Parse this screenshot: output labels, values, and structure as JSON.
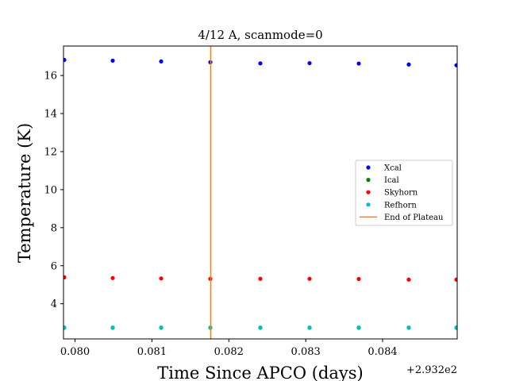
{
  "chart_data": {
    "type": "scatter",
    "title": "4/12 A, scanmode=0",
    "xlabel": "Time Since APCO (days)",
    "ylabel": "Temperature (K)",
    "x_offset_label": "+2.932e2",
    "xlim": [
      0.07985,
      0.08497
    ],
    "ylim": [
      2.15,
      17.55
    ],
    "x_ticks": [
      0.08,
      0.081,
      0.082,
      0.083,
      0.084
    ],
    "x_tick_labels": [
      "0.080",
      "0.081",
      "0.082",
      "0.083",
      "0.084"
    ],
    "y_ticks": [
      4,
      6,
      8,
      10,
      12,
      14,
      16
    ],
    "y_tick_labels": [
      "4",
      "6",
      "8",
      "10",
      "12",
      "14",
      "16"
    ],
    "grid": false,
    "legend_position": "right",
    "x": [
      0.07986,
      0.08049,
      0.08112,
      0.08176,
      0.08241,
      0.08305,
      0.08369,
      0.08434,
      0.08496
    ],
    "series": [
      {
        "name": "Xcal",
        "color": "#0000ff",
        "values": [
          16.82,
          16.78,
          16.74,
          16.7,
          16.64,
          16.65,
          16.63,
          16.58,
          16.54
        ]
      },
      {
        "name": "Ical",
        "color": "#008000",
        "values": [
          2.74,
          2.74,
          2.74,
          2.74,
          2.74,
          2.74,
          2.74,
          2.74,
          2.74
        ]
      },
      {
        "name": "Skyhorn",
        "color": "#ff0000",
        "values": [
          5.39,
          5.35,
          5.33,
          5.31,
          5.31,
          5.31,
          5.3,
          5.27,
          5.27
        ]
      },
      {
        "name": "Refhorn",
        "color": "#00bfbf",
        "values": [
          2.75,
          2.75,
          2.75,
          2.75,
          2.75,
          2.75,
          2.75,
          2.75,
          2.75
        ]
      }
    ],
    "vline": {
      "name": "End of Plateau",
      "x": 0.081765,
      "color": "#ff7f0e"
    }
  }
}
